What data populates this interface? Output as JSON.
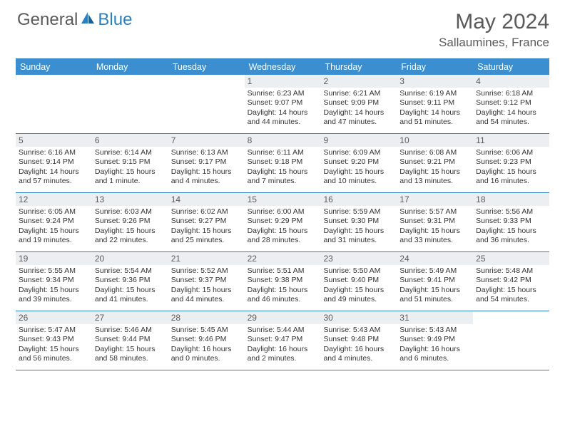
{
  "brand": {
    "part1": "General",
    "part2": "Blue"
  },
  "title": "May 2024",
  "location": "Sallaumines, France",
  "dayHeaders": [
    "Sunday",
    "Monday",
    "Tuesday",
    "Wednesday",
    "Thursday",
    "Friday",
    "Saturday"
  ],
  "colors": {
    "header_bg": "#3b8fd1",
    "rule": "#2a7fbf",
    "daynum_bg": "#eceff1",
    "text": "#333333"
  },
  "font": {
    "body_pt": 10.5,
    "daynum_pt": 12,
    "header_pt": 12.5,
    "title_pt": 30,
    "location_pt": 17
  },
  "weeks": [
    [
      {
        "n": "",
        "sr": "",
        "ss": "",
        "dl": ""
      },
      {
        "n": "",
        "sr": "",
        "ss": "",
        "dl": ""
      },
      {
        "n": "",
        "sr": "",
        "ss": "",
        "dl": ""
      },
      {
        "n": "1",
        "sr": "6:23 AM",
        "ss": "9:07 PM",
        "dl": "14 hours and 44 minutes."
      },
      {
        "n": "2",
        "sr": "6:21 AM",
        "ss": "9:09 PM",
        "dl": "14 hours and 47 minutes."
      },
      {
        "n": "3",
        "sr": "6:19 AM",
        "ss": "9:11 PM",
        "dl": "14 hours and 51 minutes."
      },
      {
        "n": "4",
        "sr": "6:18 AM",
        "ss": "9:12 PM",
        "dl": "14 hours and 54 minutes."
      }
    ],
    [
      {
        "n": "5",
        "sr": "6:16 AM",
        "ss": "9:14 PM",
        "dl": "14 hours and 57 minutes."
      },
      {
        "n": "6",
        "sr": "6:14 AM",
        "ss": "9:15 PM",
        "dl": "15 hours and 1 minute."
      },
      {
        "n": "7",
        "sr": "6:13 AM",
        "ss": "9:17 PM",
        "dl": "15 hours and 4 minutes."
      },
      {
        "n": "8",
        "sr": "6:11 AM",
        "ss": "9:18 PM",
        "dl": "15 hours and 7 minutes."
      },
      {
        "n": "9",
        "sr": "6:09 AM",
        "ss": "9:20 PM",
        "dl": "15 hours and 10 minutes."
      },
      {
        "n": "10",
        "sr": "6:08 AM",
        "ss": "9:21 PM",
        "dl": "15 hours and 13 minutes."
      },
      {
        "n": "11",
        "sr": "6:06 AM",
        "ss": "9:23 PM",
        "dl": "15 hours and 16 minutes."
      }
    ],
    [
      {
        "n": "12",
        "sr": "6:05 AM",
        "ss": "9:24 PM",
        "dl": "15 hours and 19 minutes."
      },
      {
        "n": "13",
        "sr": "6:03 AM",
        "ss": "9:26 PM",
        "dl": "15 hours and 22 minutes."
      },
      {
        "n": "14",
        "sr": "6:02 AM",
        "ss": "9:27 PM",
        "dl": "15 hours and 25 minutes."
      },
      {
        "n": "15",
        "sr": "6:00 AM",
        "ss": "9:29 PM",
        "dl": "15 hours and 28 minutes."
      },
      {
        "n": "16",
        "sr": "5:59 AM",
        "ss": "9:30 PM",
        "dl": "15 hours and 31 minutes."
      },
      {
        "n": "17",
        "sr": "5:57 AM",
        "ss": "9:31 PM",
        "dl": "15 hours and 33 minutes."
      },
      {
        "n": "18",
        "sr": "5:56 AM",
        "ss": "9:33 PM",
        "dl": "15 hours and 36 minutes."
      }
    ],
    [
      {
        "n": "19",
        "sr": "5:55 AM",
        "ss": "9:34 PM",
        "dl": "15 hours and 39 minutes."
      },
      {
        "n": "20",
        "sr": "5:54 AM",
        "ss": "9:36 PM",
        "dl": "15 hours and 41 minutes."
      },
      {
        "n": "21",
        "sr": "5:52 AM",
        "ss": "9:37 PM",
        "dl": "15 hours and 44 minutes."
      },
      {
        "n": "22",
        "sr": "5:51 AM",
        "ss": "9:38 PM",
        "dl": "15 hours and 46 minutes."
      },
      {
        "n": "23",
        "sr": "5:50 AM",
        "ss": "9:40 PM",
        "dl": "15 hours and 49 minutes."
      },
      {
        "n": "24",
        "sr": "5:49 AM",
        "ss": "9:41 PM",
        "dl": "15 hours and 51 minutes."
      },
      {
        "n": "25",
        "sr": "5:48 AM",
        "ss": "9:42 PM",
        "dl": "15 hours and 54 minutes."
      }
    ],
    [
      {
        "n": "26",
        "sr": "5:47 AM",
        "ss": "9:43 PM",
        "dl": "15 hours and 56 minutes."
      },
      {
        "n": "27",
        "sr": "5:46 AM",
        "ss": "9:44 PM",
        "dl": "15 hours and 58 minutes."
      },
      {
        "n": "28",
        "sr": "5:45 AM",
        "ss": "9:46 PM",
        "dl": "16 hours and 0 minutes."
      },
      {
        "n": "29",
        "sr": "5:44 AM",
        "ss": "9:47 PM",
        "dl": "16 hours and 2 minutes."
      },
      {
        "n": "30",
        "sr": "5:43 AM",
        "ss": "9:48 PM",
        "dl": "16 hours and 4 minutes."
      },
      {
        "n": "31",
        "sr": "5:43 AM",
        "ss": "9:49 PM",
        "dl": "16 hours and 6 minutes."
      },
      {
        "n": "",
        "sr": "",
        "ss": "",
        "dl": ""
      }
    ]
  ]
}
